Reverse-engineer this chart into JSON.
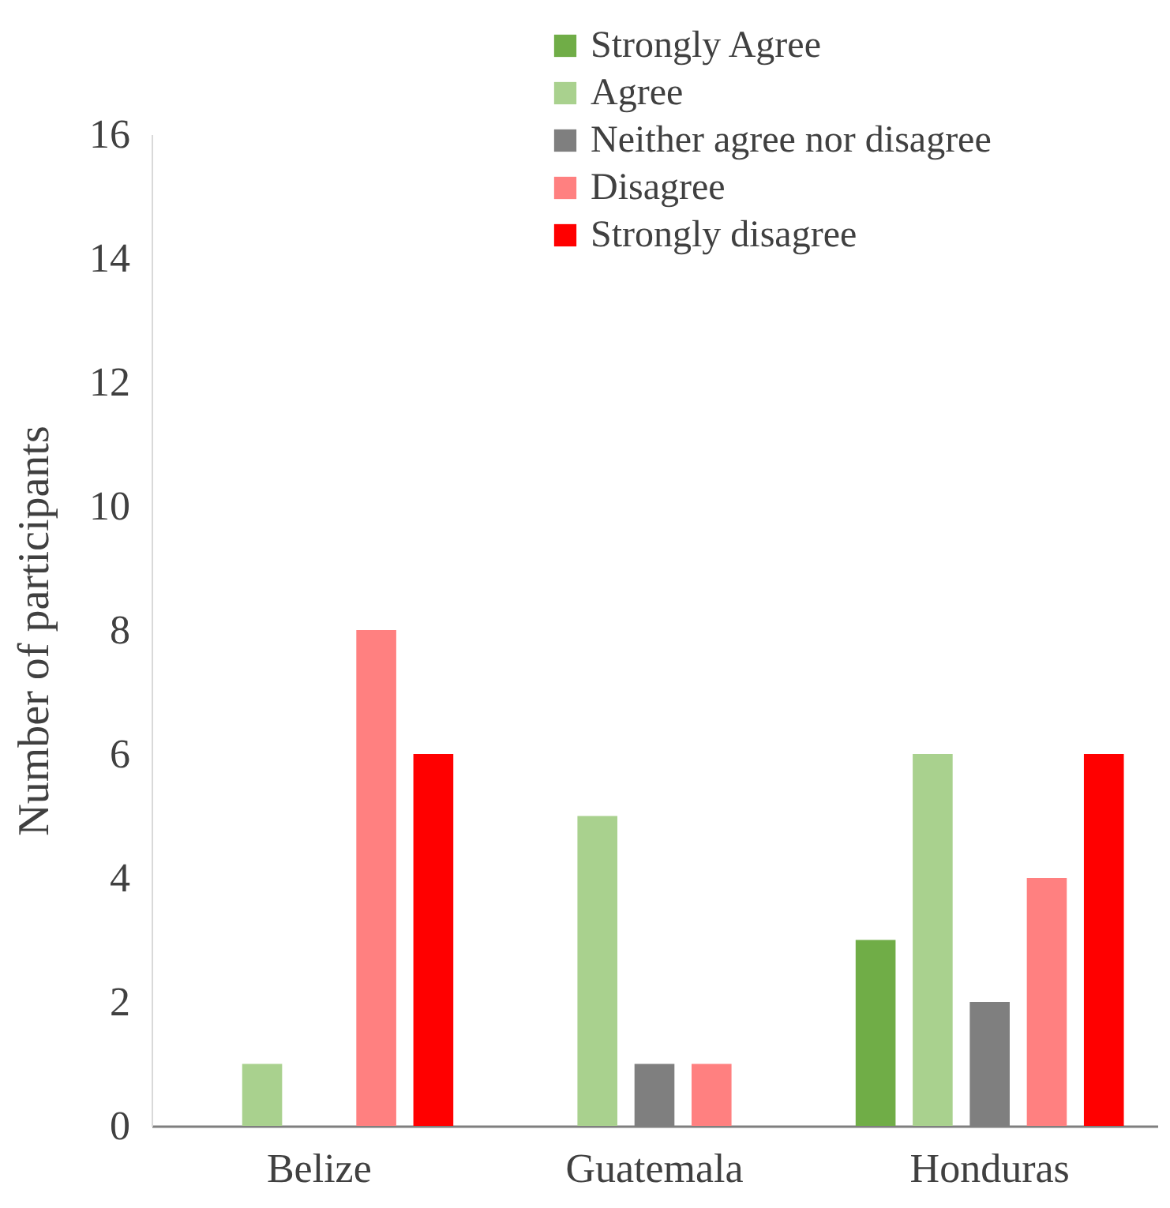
{
  "chart_data": {
    "type": "bar",
    "ylabel": "Number of participants",
    "categories": [
      "Belize",
      "Guatemala",
      "Honduras"
    ],
    "series": [
      {
        "name": "Strongly Agree",
        "color": "#70ad47",
        "values": [
          0,
          0,
          3
        ]
      },
      {
        "name": "Agree",
        "color": "#a9d18e",
        "values": [
          1,
          5,
          6
        ]
      },
      {
        "name": "Neither agree nor disagree",
        "color": "#7f7f7f",
        "values": [
          0,
          1,
          2
        ]
      },
      {
        "name": "Disagree",
        "color": "#ff8080",
        "values": [
          8,
          1,
          4
        ]
      },
      {
        "name": "Strongly disagree",
        "color": "#ff0000",
        "values": [
          6,
          0,
          6
        ]
      }
    ],
    "ylim": [
      0,
      16
    ],
    "yticks": [
      0,
      2,
      4,
      6,
      8,
      10,
      12,
      14,
      16
    ],
    "grid": false,
    "legend": "top right"
  }
}
